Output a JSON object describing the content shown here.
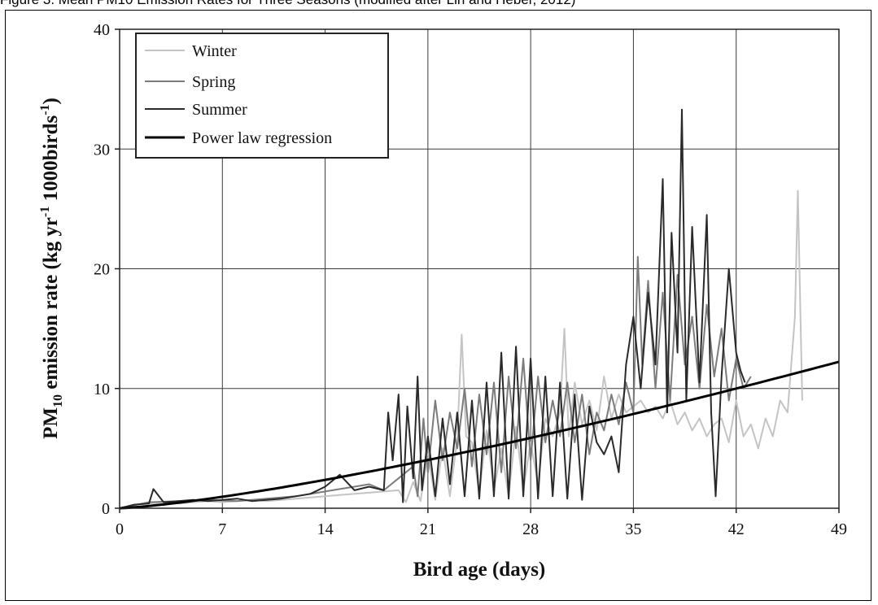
{
  "caption": "Figure 3. Mean PM10 Emission Rates for Three Seasons (modified after Lin and Heber, 2012)",
  "chart_data": {
    "type": "line",
    "xlabel": "Bird age (days)",
    "ylabel_parts": {
      "pm": "PM",
      "sub": "10",
      "mid": " emission rate (kg yr",
      "sup1": "-1",
      "mid2": " 1000birds",
      "sup2": "-1",
      "end": ")"
    },
    "xlim": [
      0,
      49
    ],
    "ylim": [
      0,
      40
    ],
    "xticks": [
      "0",
      "7",
      "14",
      "21",
      "28",
      "35",
      "42",
      "49"
    ],
    "yticks": [
      "0",
      "10",
      "20",
      "30",
      "40"
    ],
    "grid": true,
    "legend_position": "top-left",
    "series": [
      {
        "name": "Winter",
        "color": "#c4c4c4",
        "x": [
          0,
          1,
          2,
          3,
          4,
          5,
          6,
          7,
          8,
          9,
          10,
          11,
          12,
          13,
          14,
          15,
          16,
          17,
          18,
          19,
          19.5,
          20,
          20.5,
          21,
          21.5,
          22,
          22.5,
          23,
          23.3,
          23.6,
          24,
          24.5,
          25,
          25.5,
          26,
          26.5,
          27,
          27.5,
          28,
          28.5,
          29,
          29.5,
          30,
          30.3,
          30.6,
          31,
          31.5,
          32,
          32.5,
          33,
          33.5,
          34,
          34.5,
          35,
          35.5,
          36,
          36.5,
          37,
          37.5,
          38,
          38.5,
          39,
          39.5,
          40,
          40.5,
          41,
          41.5,
          42,
          42.5,
          43,
          43.5,
          44,
          44.5,
          45,
          45.5,
          46,
          46.2,
          46.5
        ],
        "y": [
          0,
          0.3,
          0.4,
          0.5,
          0.4,
          0.5,
          0.6,
          0.5,
          0.6,
          0.7,
          0.6,
          0.7,
          0.8,
          0.9,
          1.0,
          1.1,
          1.2,
          1.3,
          1.4,
          1.5,
          0.5,
          2.2,
          0.6,
          4.5,
          0.7,
          5.0,
          1.0,
          5.8,
          14.5,
          6.0,
          5.5,
          1.2,
          6.5,
          1.5,
          5.0,
          1.0,
          6.8,
          1.5,
          5.5,
          2.0,
          7.5,
          6.0,
          8.0,
          15.0,
          6.0,
          10.5,
          7.0,
          9.0,
          6.5,
          11.0,
          7.5,
          9.5,
          8.0,
          8.5,
          9.0,
          8.0,
          8.5,
          7.5,
          9.0,
          7.0,
          8.0,
          6.5,
          7.5,
          6.0,
          7.0,
          7.5,
          5.5,
          9.0,
          6.0,
          7.0,
          5.0,
          7.5,
          6.0,
          9.0,
          8.0,
          16.0,
          26.5,
          9.0
        ]
      },
      {
        "name": "Spring",
        "color": "#7c7c7c",
        "x": [
          0,
          2,
          4,
          6,
          8,
          10,
          12,
          14,
          15,
          16,
          17,
          18,
          19,
          20,
          20.3,
          20.7,
          21,
          21.5,
          22,
          22.5,
          23,
          23.5,
          24,
          24.5,
          25,
          25.5,
          26,
          26.5,
          27,
          27.5,
          28,
          28.5,
          29,
          29.5,
          30,
          30.5,
          31,
          31.5,
          32,
          32.5,
          33,
          33.5,
          34,
          34.5,
          35,
          35.3,
          35.6,
          36,
          36.5,
          37,
          37.5,
          38,
          38.5,
          39,
          39.5,
          40,
          40.5,
          41,
          41.5,
          42,
          42.5,
          43
        ],
        "y": [
          0,
          0.5,
          0.6,
          0.7,
          0.6,
          0.8,
          1.0,
          1.4,
          1.6,
          1.8,
          2.0,
          1.5,
          2.5,
          3.5,
          1.0,
          7.5,
          3.0,
          9.0,
          4.0,
          8.0,
          5.0,
          10.0,
          3.5,
          9.5,
          4.5,
          10.5,
          3.0,
          11.0,
          5.0,
          12.5,
          4.0,
          11.0,
          5.5,
          9.0,
          6.0,
          10.5,
          5.5,
          9.5,
          4.5,
          8.0,
          6.5,
          9.5,
          7.0,
          10.5,
          8.0,
          21.0,
          12.0,
          19.0,
          10.0,
          18.0,
          9.0,
          19.5,
          12.0,
          16.0,
          10.0,
          17.0,
          11.0,
          15.0,
          9.0,
          12.5,
          10.0,
          11.0
        ]
      },
      {
        "name": "Summer",
        "color": "#2a2a2a",
        "x": [
          0,
          1,
          2,
          2.3,
          3,
          4,
          5,
          6,
          7,
          8,
          9,
          10,
          11,
          12,
          13,
          14,
          15,
          16,
          17,
          18,
          18.3,
          18.6,
          19,
          19.3,
          19.6,
          20,
          20.3,
          20.6,
          21,
          21.5,
          22,
          22.5,
          23,
          23.5,
          24,
          24.5,
          25,
          25.5,
          26,
          26.5,
          27,
          27.5,
          28,
          28.5,
          29,
          29.5,
          30,
          30.5,
          31,
          31.5,
          32,
          32.5,
          33,
          33.5,
          34,
          34.5,
          35,
          35.5,
          36,
          36.5,
          37,
          37.3,
          37.6,
          38,
          38.3,
          38.6,
          39,
          39.5,
          40,
          40.3,
          40.6,
          41,
          41.5,
          42,
          42.3,
          42.6
        ],
        "y": [
          0,
          0.3,
          0.4,
          1.6,
          0.5,
          0.6,
          0.7,
          0.6,
          0.7,
          0.8,
          0.6,
          0.7,
          0.8,
          1.0,
          1.2,
          1.8,
          2.8,
          1.5,
          1.8,
          1.5,
          8.0,
          4.0,
          9.5,
          0.5,
          8.5,
          2.5,
          11.0,
          1.5,
          6.0,
          1.0,
          7.5,
          2.0,
          8.0,
          1.0,
          9.0,
          0.8,
          10.5,
          1.0,
          13.0,
          0.8,
          13.5,
          1.0,
          12.5,
          0.8,
          11.0,
          1.0,
          10.5,
          0.8,
          9.5,
          0.7,
          8.5,
          5.5,
          4.5,
          6.0,
          3.0,
          12.0,
          16.0,
          10.0,
          18.0,
          12.0,
          27.5,
          8.0,
          23.0,
          13.0,
          33.3,
          9.0,
          23.5,
          10.5,
          24.5,
          8.0,
          1.0,
          11.0,
          20.0,
          13.0,
          11.5,
          10.5
        ]
      },
      {
        "name": "Power law regression",
        "color": "#000000",
        "fn": {
          "a": 0.0747,
          "b": 1.31
        }
      }
    ]
  }
}
